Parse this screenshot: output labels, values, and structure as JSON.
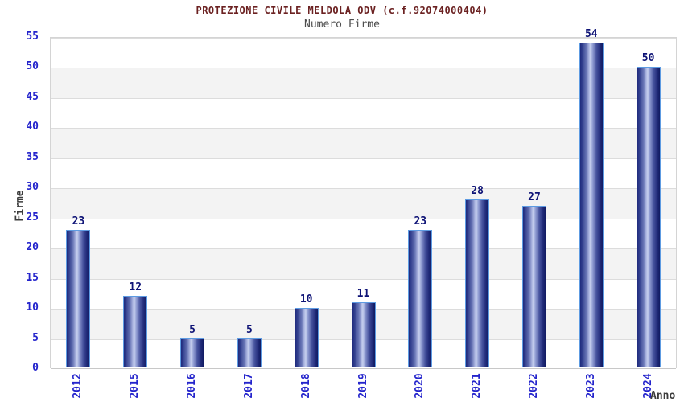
{
  "chart_data": {
    "type": "bar",
    "title": "PROTEZIONE CIVILE MELDOLA ODV (c.f.92074000404)",
    "subtitle": "Numero Firme",
    "xlabel": "Anno",
    "ylabel": "Firme",
    "categories": [
      "2012",
      "2015",
      "2016",
      "2017",
      "2018",
      "2019",
      "2020",
      "2021",
      "2022",
      "2023",
      "2024"
    ],
    "values": [
      23,
      12,
      5,
      5,
      10,
      11,
      23,
      28,
      27,
      54,
      50
    ],
    "ylim": [
      0,
      55
    ],
    "ytick_step": 5,
    "yticks": [
      0,
      5,
      10,
      15,
      20,
      25,
      30,
      35,
      40,
      45,
      50,
      55
    ],
    "grid": "horizontal-bands-alternating",
    "legend": "none"
  },
  "colors": {
    "title_text": "#6b2121",
    "subtitle_text": "#4d4d4d",
    "tick_text": "#2424cc",
    "value_text": "#0e1376",
    "axis_title_text": "#3c3c3c",
    "band_gray": "#f3f3f3",
    "band_white": "#ffffff",
    "gridline": "#dcdcdc",
    "plot_border": "#d4d4d4",
    "baseline": "#c8c8c8",
    "bar_border": "#5d9be2",
    "bar_gradient": [
      "#1e2a7d",
      "#33408f",
      "#6a77b7",
      "#aeb8e2",
      "#c6cfee",
      "#93a0d4",
      "#47549f",
      "#222c7a",
      "#101a61"
    ]
  }
}
